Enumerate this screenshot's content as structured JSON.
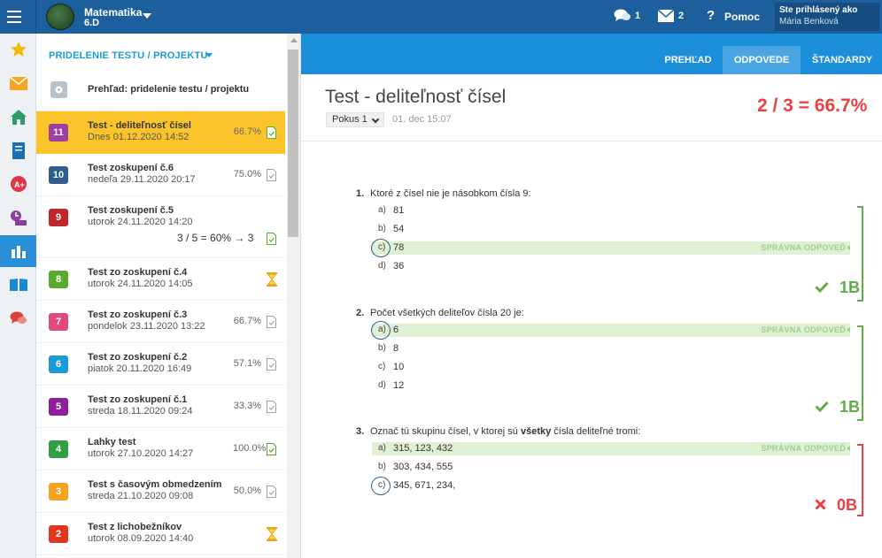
{
  "topbar": {
    "class_title": "Matematika",
    "class_sub": "6.D",
    "chat_count": "1",
    "mail_count": "2",
    "help_icon": "?",
    "help_label": "Pomoc",
    "user_prompt": "Ste prihlásený ako",
    "user_name": "Mária Benková"
  },
  "sidebar": {
    "items": [
      {
        "icon": "star-icon"
      },
      {
        "icon": "mail-icon"
      },
      {
        "icon": "home-icon"
      },
      {
        "icon": "notebook-icon"
      },
      {
        "icon": "grade-icon"
      },
      {
        "icon": "timeline-icon"
      },
      {
        "icon": "chart-icon",
        "active": true
      },
      {
        "icon": "book-icon"
      },
      {
        "icon": "discussion-icon"
      }
    ]
  },
  "panel": {
    "header": "PRIDELENIE TESTU / PROJEKTU",
    "overview_label": "Prehľad: pridelenie testu / projektu",
    "items": [
      {
        "num": "11",
        "color": "#9b3fa0",
        "title": "Test - deliteľnosť čísel",
        "date": "Dnes 01.12.2020 14:52",
        "pct": "66.7%",
        "status": "doc-green",
        "selected": true
      },
      {
        "num": "10",
        "color": "#2e5d8e",
        "title": "Test zoskupení č.6",
        "date": "nedeľa 29.11.2020 20:17",
        "pct": "75.0%",
        "status": "doc-gray"
      },
      {
        "num": "9",
        "color": "#c0272d",
        "title": "Test zoskupení č.5",
        "date": "utorok 24.11.2020 14:20",
        "pct": "",
        "score": "3 / 5 = 60% → 3",
        "status": "doc-green"
      },
      {
        "num": "8",
        "color": "#5aaa2e",
        "title": "Test zo zoskupení č.4",
        "date": "utorok 24.11.2020 14:05",
        "pct": "",
        "status": "hourglass"
      },
      {
        "num": "7",
        "color": "#e24a7d",
        "title": "Test zo zoskupení č.3",
        "date": "pondelok 23.11.2020 13:22",
        "pct": "66.7%",
        "status": "doc-gray"
      },
      {
        "num": "6",
        "color": "#1a9ad6",
        "title": "Test zo zoskupení č.2",
        "date": "piatok 20.11.2020 16:49",
        "pct": "57.1%",
        "status": "doc-gray"
      },
      {
        "num": "5",
        "color": "#8e1e9a",
        "title": "Test zo zoskupení č.1",
        "date": "streda 18.11.2020 09:24",
        "pct": "33.3%",
        "status": "doc-gray"
      },
      {
        "num": "4",
        "color": "#2ea043",
        "title": "Lahky test",
        "date": "utorok 27.10.2020 14:27",
        "pct": "100.0%",
        "status": "doc-green"
      },
      {
        "num": "3",
        "color": "#f5a21f",
        "title": "Test s časovým obmedzením",
        "date": "streda 21.10.2020 09:08",
        "pct": "50.0%",
        "status": "doc-gray"
      },
      {
        "num": "2",
        "color": "#e0361f",
        "title": "Test z lichobežníkov",
        "date": "utorok 08.09.2020 14:40",
        "pct": "",
        "status": "hourglass"
      }
    ]
  },
  "tabs": [
    {
      "label": "PREHĽAD",
      "active": false
    },
    {
      "label": "ODPOVEDE",
      "active": true
    },
    {
      "label": "ŠTANDARDY",
      "active": false
    }
  ],
  "test": {
    "title": "Test - deliteľnosť čísel",
    "attempt": "Pokus 1",
    "date": "01. dec 15:07",
    "score": "2 / 3 = 66.7%"
  },
  "correct_label": "SPRÁVNA ODPOVEĎ",
  "questions": [
    {
      "num": "1.",
      "text": "Ktoré z čísel nie je násobkom čísla 9:",
      "points": "1B",
      "result": "correct",
      "answers": [
        {
          "letter": "a)",
          "text": "81"
        },
        {
          "letter": "b)",
          "text": "54"
        },
        {
          "letter": "c)",
          "text": "78",
          "selected": true,
          "correct": true
        },
        {
          "letter": "d)",
          "text": "36"
        }
      ]
    },
    {
      "num": "2.",
      "text": "Počet všetkých deliteľov čísla 20 je:",
      "points": "1B",
      "result": "correct",
      "answers": [
        {
          "letter": "a)",
          "text": "6",
          "selected": true,
          "correct": true
        },
        {
          "letter": "b)",
          "text": "8"
        },
        {
          "letter": "c)",
          "text": "10"
        },
        {
          "letter": "d)",
          "text": "12"
        }
      ]
    },
    {
      "num": "3.",
      "text_before": "Označ tú skupinu čísel, v ktorej sú ",
      "text_bold": "všetky",
      "text_after": " čísla deliteľné tromi:",
      "points": "0B",
      "result": "wrong",
      "answers": [
        {
          "letter": "a)",
          "text": "315, 123, 432",
          "correct": true
        },
        {
          "letter": "b)",
          "text": "303, 434, 555"
        },
        {
          "letter": "c)",
          "text": "345, 671, 234,",
          "selected": true
        }
      ]
    }
  ],
  "colors": {
    "topbar": "#1d5f9c",
    "tabbar": "#1c8fdb",
    "accent": "#1a9ad6",
    "selected_item": "#fcc42b",
    "good": "#5eae45",
    "bad": "#e94143",
    "correct_bg": "#dff0d4"
  }
}
